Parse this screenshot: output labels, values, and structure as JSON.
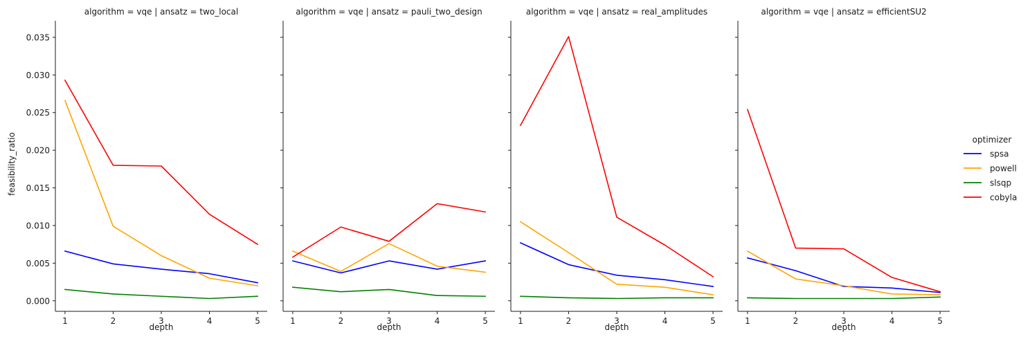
{
  "chart_data": {
    "type": "line",
    "ylabel": "feasibility_ratio",
    "ylim": [
      -0.0014,
      0.0372
    ],
    "yticks": [
      "0.000",
      "0.005",
      "0.010",
      "0.015",
      "0.020",
      "0.025",
      "0.030",
      "0.035"
    ],
    "ytick_values": [
      0,
      0.005,
      0.01,
      0.015,
      0.02,
      0.025,
      0.03,
      0.035
    ],
    "xlim": [
      0.8,
      5.2
    ],
    "x": [
      1,
      2,
      3,
      4,
      5
    ],
    "xtick_labels": [
      "1",
      "2",
      "3",
      "4",
      "5"
    ],
    "legend": {
      "title": "optimizer",
      "placement": "right",
      "entries": [
        {
          "name": "spsa",
          "color": "#0000ff"
        },
        {
          "name": "powell",
          "color": "#ffa500"
        },
        {
          "name": "slsqp",
          "color": "#008000"
        },
        {
          "name": "cobyla",
          "color": "#ff0000"
        }
      ]
    },
    "panels": [
      {
        "title": "algorithm = vqe | ansatz = two_local",
        "xlabel": "depth",
        "series": [
          {
            "name": "spsa",
            "values": [
              0.0066,
              0.0049,
              0.0042,
              0.0036,
              0.0024
            ]
          },
          {
            "name": "powell",
            "values": [
              0.0266,
              0.0099,
              0.006,
              0.003,
              0.002
            ]
          },
          {
            "name": "slsqp",
            "values": [
              0.0015,
              0.0009,
              0.0006,
              0.0003,
              0.0006
            ]
          },
          {
            "name": "cobyla",
            "values": [
              0.0293,
              0.018,
              0.0179,
              0.0115,
              0.0075
            ]
          }
        ]
      },
      {
        "title": "algorithm = vqe | ansatz = pauli_two_design",
        "xlabel": "depth",
        "series": [
          {
            "name": "spsa",
            "values": [
              0.0053,
              0.0037,
              0.0053,
              0.0042,
              0.0053
            ]
          },
          {
            "name": "powell",
            "values": [
              0.0066,
              0.0039,
              0.0076,
              0.0046,
              0.0038
            ]
          },
          {
            "name": "slsqp",
            "values": [
              0.0018,
              0.0012,
              0.0015,
              0.0007,
              0.0006
            ]
          },
          {
            "name": "cobyla",
            "values": [
              0.0058,
              0.0098,
              0.0079,
              0.0129,
              0.0118
            ]
          }
        ]
      },
      {
        "title": "algorithm = vqe | ansatz = real_amplitudes",
        "xlabel": "depth",
        "series": [
          {
            "name": "spsa",
            "values": [
              0.0077,
              0.0048,
              0.0034,
              0.0028,
              0.0019
            ]
          },
          {
            "name": "powell",
            "values": [
              0.0105,
              0.0064,
              0.0022,
              0.0018,
              0.0008
            ]
          },
          {
            "name": "slsqp",
            "values": [
              0.0006,
              0.0004,
              0.0003,
              0.0004,
              0.0004
            ]
          },
          {
            "name": "cobyla",
            "values": [
              0.0233,
              0.0351,
              0.0111,
              0.0074,
              0.0032
            ]
          }
        ]
      },
      {
        "title": "algorithm = vqe | ansatz = efficientSU2",
        "xlabel": "depth",
        "series": [
          {
            "name": "spsa",
            "values": [
              0.0057,
              0.004,
              0.0019,
              0.0017,
              0.0011
            ]
          },
          {
            "name": "powell",
            "values": [
              0.0066,
              0.0029,
              0.002,
              0.0009,
              0.0008
            ]
          },
          {
            "name": "slsqp",
            "values": [
              0.0004,
              0.0003,
              0.0003,
              0.0003,
              0.0005
            ]
          },
          {
            "name": "cobyla",
            "values": [
              0.0254,
              0.007,
              0.0069,
              0.0031,
              0.0012
            ]
          }
        ]
      }
    ]
  }
}
